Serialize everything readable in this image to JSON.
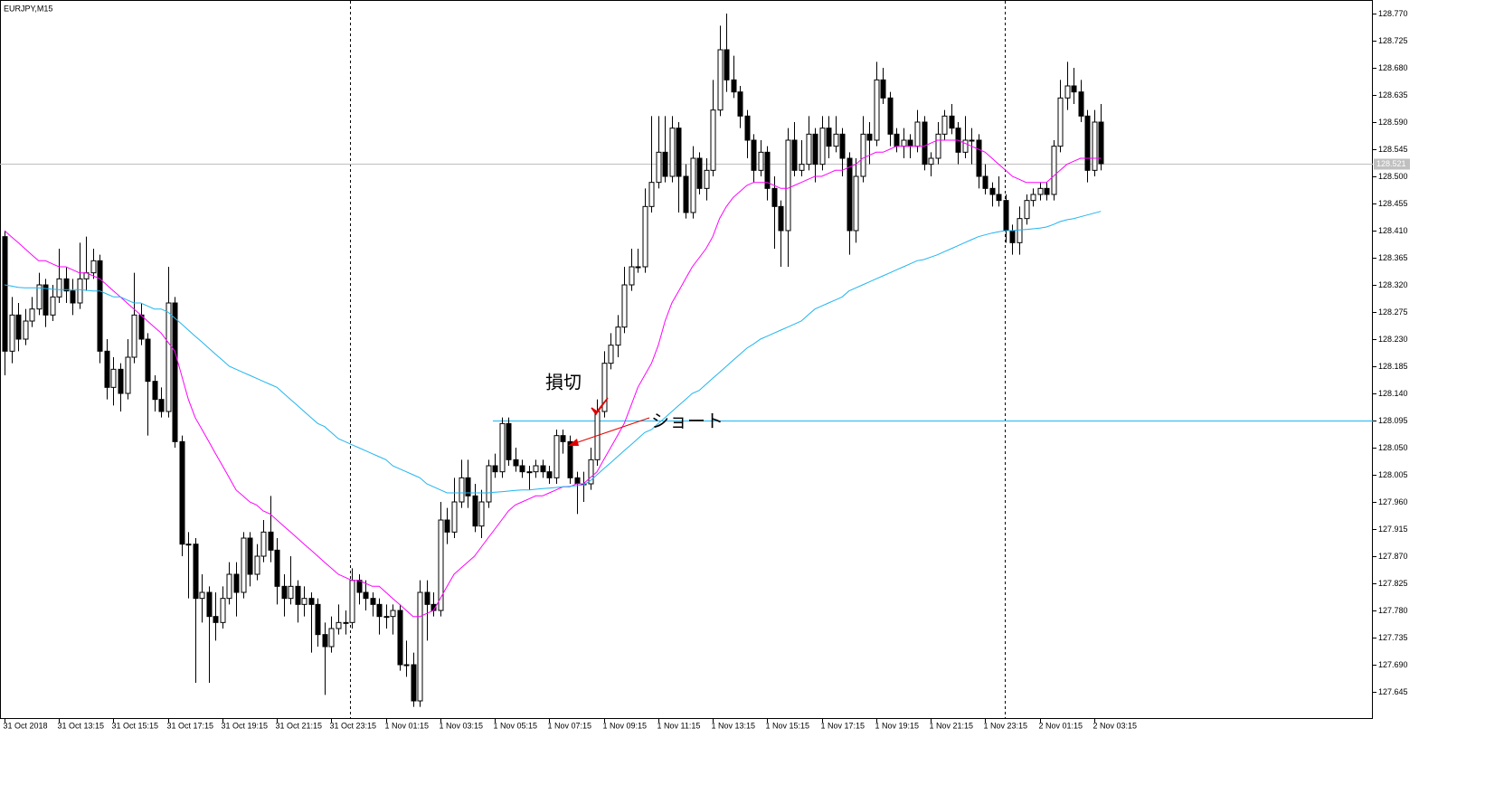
{
  "chart_data": {
    "type": "candlestick",
    "title": "EURJPY,M15",
    "categories": [
      "31 Oct 2018",
      null,
      null,
      null,
      null,
      null,
      null,
      null,
      "31 Oct 13:15",
      null,
      null,
      null,
      null,
      null,
      null,
      null,
      "31 Oct 15:15",
      null,
      null,
      null,
      null,
      null,
      null,
      null,
      "31 Oct 17:15",
      null,
      null,
      null,
      null,
      null,
      null,
      null,
      "31 Oct 19:15",
      null,
      null,
      null,
      null,
      null,
      null,
      null,
      "31 Oct 21:15",
      null,
      null,
      null,
      null,
      null,
      null,
      null,
      "31 Oct 23:15",
      null,
      null,
      null,
      null,
      null,
      null,
      null,
      "1 Nov 01:15",
      null,
      null,
      null,
      null,
      null,
      null,
      null,
      "1 Nov 03:15",
      null,
      null,
      null,
      null,
      null,
      null,
      null,
      "1 Nov 05:15",
      null,
      null,
      null,
      null,
      null,
      null,
      null,
      "1 Nov 07:15",
      null,
      null,
      null,
      null,
      null,
      null,
      null,
      "1 Nov 09:15",
      null,
      null,
      null,
      null,
      null,
      null,
      null,
      "1 Nov 11:15",
      null,
      null,
      null,
      null,
      null,
      null,
      null,
      "1 Nov 13:15",
      null,
      null,
      null,
      null,
      null,
      null,
      null,
      "1 Nov 15:15",
      null,
      null,
      null,
      null,
      null,
      null,
      null,
      "1 Nov 17:15",
      null,
      null,
      null,
      null,
      null,
      null,
      null,
      "1 Nov 19:15",
      null,
      null,
      null,
      null,
      null,
      null,
      null,
      "1 Nov 21:15",
      null,
      null,
      null,
      null,
      null,
      null,
      null,
      "1 Nov 23:15",
      null,
      null,
      null,
      null,
      null,
      null,
      null,
      "2 Nov 01:15",
      null,
      null,
      null,
      null,
      null,
      null,
      null,
      "2 Nov 03:15",
      null
    ],
    "open": [
      128.4,
      128.21,
      128.27,
      128.23,
      128.26,
      128.28,
      128.32,
      128.27,
      128.3,
      128.33,
      128.31,
      128.29,
      128.33,
      128.34,
      128.36,
      128.21,
      128.15,
      128.18,
      128.14,
      128.2,
      128.27,
      128.23,
      128.16,
      128.13,
      128.11,
      128.29,
      128.06,
      127.89,
      127.89,
      127.8,
      127.81,
      127.77,
      127.76,
      127.8,
      127.84,
      127.81,
      127.9,
      127.84,
      127.87,
      127.91,
      127.88,
      127.82,
      127.8,
      127.82,
      127.79,
      127.8,
      127.79,
      127.74,
      127.72,
      127.75,
      127.76,
      127.76,
      127.83,
      127.81,
      127.8,
      127.79,
      127.77,
      127.77,
      127.78,
      127.69,
      127.69,
      127.63,
      127.81,
      127.79,
      127.78,
      127.93,
      127.91,
      127.96,
      128.0,
      127.97,
      127.92,
      127.96,
      128.02,
      128.01,
      128.09,
      128.03,
      128.02,
      128.01,
      128.01,
      128.02,
      128.01,
      128.0,
      128.07,
      128.06,
      128.0,
      127.99,
      127.99,
      128.03,
      128.11,
      128.19,
      128.22,
      128.25,
      128.32,
      128.35,
      128.35,
      128.45,
      128.49,
      128.54,
      128.5,
      128.58,
      128.5,
      128.44,
      128.53,
      128.48,
      128.51,
      128.61,
      128.71,
      128.66,
      128.64,
      128.6,
      128.56,
      128.51,
      128.54,
      128.48,
      128.45,
      128.41,
      128.56,
      128.51,
      128.52,
      128.57,
      128.52,
      128.58,
      128.55,
      128.57,
      128.53,
      128.41,
      128.5,
      128.57,
      128.56,
      128.66,
      128.63,
      128.57,
      128.55,
      128.56,
      128.55,
      128.59,
      128.52,
      128.53,
      128.57,
      128.6,
      128.58,
      128.54,
      128.56,
      128.56,
      128.5,
      128.48,
      128.47,
      128.46,
      128.41,
      128.39,
      128.43,
      128.46,
      128.47,
      128.48,
      128.47,
      128.55,
      128.63,
      128.65,
      128.64,
      128.6,
      128.51,
      128.59
    ],
    "high": [
      128.41,
      128.3,
      128.29,
      128.28,
      128.3,
      128.34,
      128.33,
      128.32,
      128.38,
      128.35,
      128.33,
      128.39,
      128.4,
      128.38,
      128.37,
      128.23,
      128.2,
      128.19,
      128.23,
      128.34,
      128.29,
      128.24,
      128.17,
      128.15,
      128.35,
      128.3,
      128.07,
      127.91,
      127.9,
      127.84,
      127.82,
      127.81,
      127.82,
      127.86,
      127.86,
      127.91,
      127.91,
      127.89,
      127.93,
      127.97,
      127.9,
      127.84,
      127.87,
      127.83,
      127.82,
      127.81,
      127.8,
      127.76,
      127.77,
      127.79,
      127.78,
      127.85,
      127.84,
      127.83,
      127.81,
      127.8,
      127.79,
      127.79,
      127.79,
      127.73,
      127.71,
      127.83,
      127.83,
      127.81,
      127.96,
      127.95,
      128.0,
      128.03,
      128.03,
      127.99,
      127.98,
      128.03,
      128.04,
      128.1,
      128.1,
      128.05,
      128.03,
      128.02,
      128.03,
      128.03,
      128.02,
      128.08,
      128.08,
      128.07,
      128.01,
      128.01,
      128.05,
      128.13,
      128.21,
      128.24,
      128.27,
      128.35,
      128.38,
      128.38,
      128.48,
      128.6,
      128.6,
      128.6,
      128.6,
      128.59,
      128.52,
      128.55,
      128.54,
      128.53,
      128.66,
      128.75,
      128.77,
      128.7,
      128.65,
      128.61,
      128.57,
      128.56,
      128.55,
      128.5,
      128.46,
      128.58,
      128.59,
      128.56,
      128.6,
      128.58,
      128.6,
      128.6,
      128.6,
      128.58,
      128.54,
      128.53,
      128.6,
      128.59,
      128.69,
      128.68,
      128.64,
      128.58,
      128.58,
      128.57,
      128.61,
      128.6,
      128.54,
      128.59,
      128.61,
      128.62,
      128.59,
      128.6,
      128.58,
      128.57,
      128.52,
      128.49,
      128.5,
      128.47,
      128.42,
      128.45,
      128.47,
      128.48,
      128.49,
      128.49,
      128.56,
      128.66,
      128.69,
      128.68,
      128.66,
      128.61,
      128.61,
      128.62
    ],
    "low": [
      128.17,
      128.19,
      128.21,
      128.22,
      128.25,
      128.27,
      128.25,
      128.26,
      128.29,
      128.29,
      128.27,
      128.28,
      128.31,
      128.33,
      128.19,
      128.13,
      128.12,
      128.11,
      128.13,
      128.19,
      128.22,
      128.07,
      128.11,
      128.1,
      128.1,
      128.05,
      127.87,
      127.8,
      127.66,
      127.76,
      127.66,
      127.73,
      127.75,
      127.79,
      127.77,
      127.8,
      127.82,
      127.83,
      127.86,
      127.86,
      127.79,
      127.77,
      127.79,
      127.76,
      127.77,
      127.71,
      127.72,
      127.64,
      127.71,
      127.74,
      127.74,
      127.75,
      127.79,
      127.78,
      127.77,
      127.74,
      127.75,
      127.74,
      127.68,
      127.67,
      127.62,
      127.62,
      127.73,
      127.77,
      127.77,
      127.89,
      127.9,
      127.95,
      127.95,
      127.91,
      127.9,
      127.95,
      128.0,
      128.0,
      128.02,
      128.01,
      128.0,
      127.98,
      128.0,
      128.0,
      127.99,
      127.99,
      128.04,
      127.99,
      127.94,
      127.96,
      127.98,
      128.02,
      128.1,
      128.18,
      128.2,
      128.24,
      128.31,
      128.34,
      128.34,
      128.44,
      128.48,
      128.49,
      128.49,
      128.44,
      128.43,
      128.43,
      128.47,
      128.46,
      128.5,
      128.6,
      128.64,
      128.63,
      128.58,
      128.53,
      128.49,
      128.5,
      128.46,
      128.38,
      128.35,
      128.35,
      128.5,
      128.5,
      128.51,
      128.49,
      128.51,
      128.53,
      128.54,
      128.5,
      128.37,
      128.39,
      128.49,
      128.52,
      128.55,
      128.62,
      128.55,
      128.54,
      128.53,
      128.53,
      128.54,
      128.51,
      128.5,
      128.52,
      128.56,
      128.57,
      128.52,
      128.53,
      128.52,
      128.48,
      128.47,
      128.45,
      128.45,
      128.39,
      128.37,
      128.37,
      128.42,
      128.45,
      128.46,
      128.46,
      128.46,
      128.54,
      128.61,
      128.62,
      128.59,
      128.49,
      128.5,
      128.51
    ],
    "close": [
      128.21,
      128.27,
      128.23,
      128.26,
      128.28,
      128.32,
      128.27,
      128.3,
      128.33,
      128.31,
      128.29,
      128.33,
      128.34,
      128.36,
      128.21,
      128.15,
      128.18,
      128.14,
      128.2,
      128.27,
      128.23,
      128.16,
      128.13,
      128.11,
      128.29,
      128.06,
      127.89,
      127.89,
      127.8,
      127.81,
      127.77,
      127.76,
      127.8,
      127.84,
      127.81,
      127.9,
      127.84,
      127.87,
      127.91,
      127.88,
      127.82,
      127.8,
      127.82,
      127.79,
      127.8,
      127.79,
      127.74,
      127.72,
      127.75,
      127.76,
      127.76,
      127.83,
      127.81,
      127.8,
      127.79,
      127.77,
      127.77,
      127.78,
      127.69,
      127.69,
      127.63,
      127.81,
      127.79,
      127.78,
      127.93,
      127.91,
      127.96,
      128.0,
      127.97,
      127.92,
      127.96,
      128.02,
      128.01,
      128.09,
      128.03,
      128.02,
      128.01,
      128.01,
      128.02,
      128.01,
      128.0,
      128.07,
      128.06,
      128.0,
      127.99,
      127.99,
      128.03,
      128.11,
      128.19,
      128.22,
      128.25,
      128.32,
      128.35,
      128.35,
      128.45,
      128.49,
      128.54,
      128.5,
      128.58,
      128.5,
      128.44,
      128.53,
      128.48,
      128.51,
      128.61,
      128.71,
      128.66,
      128.64,
      128.6,
      128.56,
      128.51,
      128.54,
      128.48,
      128.45,
      128.41,
      128.56,
      128.51,
      128.52,
      128.57,
      128.52,
      128.58,
      128.55,
      128.57,
      128.53,
      128.41,
      128.5,
      128.57,
      128.56,
      128.66,
      128.63,
      128.57,
      128.55,
      128.56,
      128.55,
      128.59,
      128.52,
      128.53,
      128.57,
      128.6,
      128.58,
      128.54,
      128.56,
      128.56,
      128.5,
      128.48,
      128.47,
      128.46,
      128.41,
      128.39,
      128.43,
      128.46,
      128.47,
      128.48,
      128.47,
      128.55,
      128.63,
      128.65,
      128.64,
      128.6,
      128.51,
      128.59,
      128.521
    ],
    "up_color": "#ffffff",
    "down_color": "#000000",
    "ma_lines": [
      {
        "color": "#ff00ff",
        "values": [
          128.41,
          128.4,
          128.39,
          128.38,
          128.37,
          128.36,
          128.36,
          128.355,
          128.35,
          128.35,
          128.345,
          128.34,
          128.34,
          128.335,
          128.33,
          128.32,
          128.31,
          128.3,
          128.29,
          128.28,
          128.27,
          128.26,
          128.25,
          128.24,
          128.225,
          128.21,
          128.17,
          128.13,
          128.1,
          128.08,
          128.06,
          128.04,
          128.02,
          128.0,
          127.98,
          127.97,
          127.96,
          127.955,
          127.945,
          127.94,
          127.93,
          127.92,
          127.91,
          127.9,
          127.89,
          127.88,
          127.87,
          127.86,
          127.85,
          127.84,
          127.835,
          127.83,
          127.83,
          127.825,
          127.82,
          127.82,
          127.81,
          127.8,
          127.79,
          127.78,
          127.77,
          127.77,
          127.775,
          127.78,
          127.8,
          127.82,
          127.84,
          127.85,
          127.86,
          127.87,
          127.885,
          127.9,
          127.915,
          127.93,
          127.945,
          127.955,
          127.96,
          127.965,
          127.97,
          127.97,
          127.975,
          127.98,
          127.985,
          127.985,
          127.99,
          127.99,
          128.0,
          128.01,
          128.03,
          128.05,
          128.07,
          128.09,
          128.12,
          128.15,
          128.17,
          128.19,
          128.22,
          128.26,
          128.29,
          128.31,
          128.33,
          128.35,
          128.365,
          128.38,
          128.4,
          128.43,
          128.45,
          128.465,
          128.475,
          128.485,
          128.49,
          128.49,
          128.49,
          128.485,
          128.48,
          128.48,
          128.485,
          128.49,
          128.495,
          128.5,
          128.5,
          128.505,
          128.51,
          128.51,
          128.515,
          128.52,
          128.53,
          128.535,
          128.54,
          128.54,
          128.545,
          128.55,
          128.55,
          128.55,
          128.55,
          128.55,
          128.555,
          128.56,
          128.56,
          128.56,
          128.56,
          128.555,
          128.55,
          128.545,
          128.54,
          128.53,
          128.52,
          128.51,
          128.5,
          128.495,
          128.49,
          128.49,
          128.49,
          128.49,
          128.5,
          128.51,
          128.52,
          128.525,
          128.53,
          128.53,
          128.53,
          128.53
        ]
      },
      {
        "color": "#1fb5ef",
        "values": [
          128.32,
          128.318,
          128.316,
          128.315,
          128.315,
          128.315,
          128.314,
          128.313,
          128.312,
          128.312,
          128.312,
          128.312,
          128.311,
          128.31,
          128.31,
          128.305,
          128.3,
          128.3,
          128.295,
          128.29,
          128.29,
          128.285,
          128.28,
          128.28,
          128.275,
          128.265,
          128.255,
          128.245,
          128.235,
          128.225,
          128.215,
          128.205,
          128.195,
          128.185,
          128.18,
          128.175,
          128.17,
          128.165,
          128.16,
          128.155,
          128.15,
          128.14,
          128.13,
          128.12,
          128.11,
          128.1,
          128.09,
          128.085,
          128.075,
          128.065,
          128.06,
          128.055,
          128.05,
          128.045,
          128.04,
          128.035,
          128.03,
          128.02,
          128.015,
          128.01,
          128.005,
          128.0,
          127.99,
          127.985,
          127.98,
          127.975,
          127.975,
          127.975,
          127.975,
          127.975,
          127.975,
          127.975,
          127.976,
          127.977,
          127.978,
          127.979,
          127.98,
          127.98,
          127.981,
          127.982,
          127.983,
          127.984,
          127.985,
          127.986,
          127.987,
          127.988,
          127.995,
          128.005,
          128.015,
          128.025,
          128.035,
          128.045,
          128.055,
          128.065,
          128.075,
          128.08,
          128.09,
          128.1,
          128.11,
          128.12,
          128.13,
          128.14,
          128.145,
          128.155,
          128.165,
          128.175,
          128.185,
          128.195,
          128.205,
          128.215,
          128.222,
          128.23,
          128.235,
          128.24,
          128.245,
          128.25,
          128.255,
          128.26,
          128.27,
          128.28,
          128.285,
          128.29,
          128.295,
          128.3,
          128.31,
          128.315,
          128.32,
          128.325,
          128.33,
          128.335,
          128.34,
          128.345,
          128.35,
          128.355,
          128.36,
          128.362,
          128.366,
          128.37,
          128.375,
          128.38,
          128.385,
          128.39,
          128.395,
          128.4,
          128.403,
          128.406,
          128.408,
          128.41,
          128.41,
          128.411,
          128.412,
          128.413,
          128.414,
          128.416,
          128.42,
          128.425,
          128.428,
          128.43,
          128.433,
          128.436,
          128.439,
          128.442
        ]
      }
    ],
    "hline": 128.095,
    "hline_color": "#1fb5ef",
    "current_price": 128.521,
    "annotations": [
      "損切",
      "ショート"
    ],
    "ylim": [
      127.6,
      128.7925
    ],
    "yticks": [
      {
        "value": 128.77,
        "label": "128.770"
      },
      128.725,
      {
        "value": 128.68,
        "label": "128.680"
      },
      128.635,
      {
        "value": 128.59,
        "label": "128.590"
      },
      128.545,
      {
        "value": 128.5,
        "label": "128.500"
      },
      128.455,
      {
        "value": 128.41,
        "label": "128.410"
      },
      128.365,
      {
        "value": 128.32,
        "label": "128.320"
      },
      128.275,
      {
        "value": 128.23,
        "label": "128.230"
      },
      128.185,
      {
        "value": 128.14,
        "label": "128.140"
      },
      128.095,
      {
        "value": 128.05,
        "label": "128.050"
      },
      128.005,
      {
        "value": 127.96,
        "label": "127.960"
      },
      127.915,
      {
        "value": 127.87,
        "label": "127.870"
      },
      127.825,
      {
        "value": 127.78,
        "label": "127.780"
      },
      127.735,
      {
        "value": 127.69,
        "label": "127.690"
      },
      127.645
    ]
  }
}
